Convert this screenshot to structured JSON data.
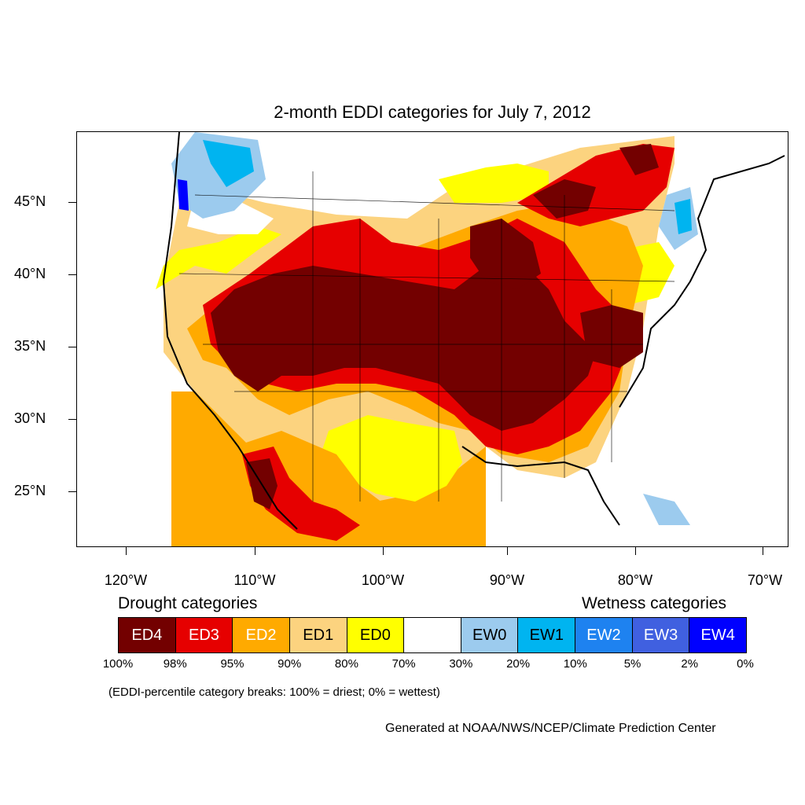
{
  "title": "2-month EDDI categories for July 7, 2012",
  "lat_labels": [
    "45°N",
    "40°N",
    "35°N",
    "30°N",
    "25°N"
  ],
  "lon_labels": [
    "120°W",
    "110°W",
    "100°W",
    "90°W",
    "80°W",
    "70°W"
  ],
  "legend": {
    "drought_heading": "Drought categories",
    "wetness_heading": "Wetness categories",
    "categories": [
      {
        "label": "ED4",
        "color": "#730000",
        "text_color": "#ffffff"
      },
      {
        "label": "ED3",
        "color": "#e60000",
        "text_color": "#ffffff"
      },
      {
        "label": "ED2",
        "color": "#ffaa00",
        "text_color": "#ffffff"
      },
      {
        "label": "ED1",
        "color": "#fcd37f",
        "text_color": "#000000"
      },
      {
        "label": "ED0",
        "color": "#ffff00",
        "text_color": "#000000"
      },
      {
        "label": "",
        "color": "#ffffff",
        "text_color": "#000000"
      },
      {
        "label": "EW0",
        "color": "#9ccbee",
        "text_color": "#000000"
      },
      {
        "label": "EW1",
        "color": "#00b4f0",
        "text_color": "#000000"
      },
      {
        "label": "EW2",
        "color": "#1e82f0",
        "text_color": "#ffffff"
      },
      {
        "label": "EW3",
        "color": "#4060e0",
        "text_color": "#ffffff"
      },
      {
        "label": "EW4",
        "color": "#0000ff",
        "text_color": "#ffffff"
      }
    ],
    "percentiles": [
      "100%",
      "98%",
      "95%",
      "90%",
      "80%",
      "70%",
      "30%",
      "20%",
      "10%",
      "5%",
      "2%",
      "0%"
    ]
  },
  "note": "(EDDI-percentile category breaks: 100% = driest; 0% = wettest)",
  "credit": "Generated at NOAA/NWS/NCEP/Climate Prediction Center"
}
